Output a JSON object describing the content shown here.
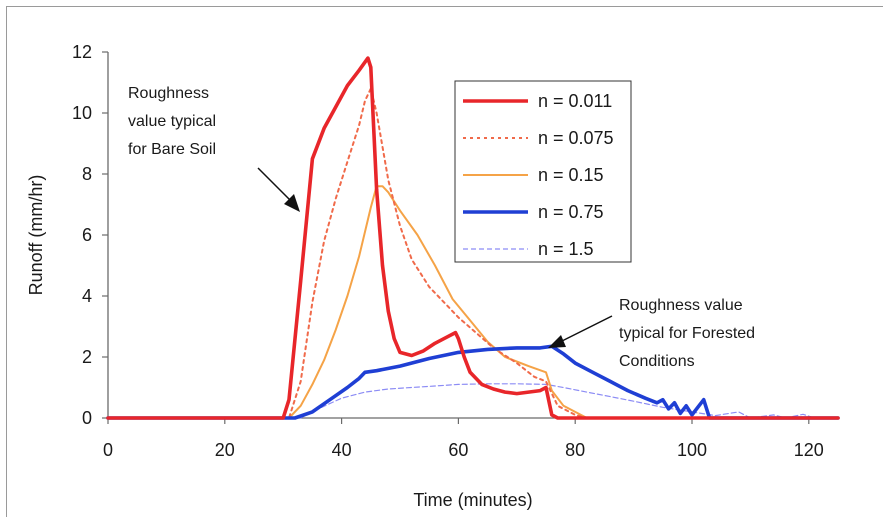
{
  "chart_data": {
    "type": "line",
    "title": "",
    "xlabel": "Time (minutes)",
    "ylabel": "Runoff (mm/hr)",
    "xlim": [
      0,
      125
    ],
    "ylim": [
      0,
      12
    ],
    "xticks": [
      0,
      20,
      40,
      60,
      80,
      100,
      120
    ],
    "yticks": [
      0,
      2,
      4,
      6,
      8,
      10,
      12
    ],
    "grid": false,
    "legend": "top-right",
    "series": [
      {
        "name": "n = 0.011",
        "color": "#e8262a",
        "style": "solid-thick",
        "points": [
          [
            0,
            0
          ],
          [
            30,
            0
          ],
          [
            31,
            0.6
          ],
          [
            33,
            4.5
          ],
          [
            35,
            8.5
          ],
          [
            37,
            9.5
          ],
          [
            39,
            10.2
          ],
          [
            41,
            10.9
          ],
          [
            43,
            11.4
          ],
          [
            44.5,
            11.8
          ],
          [
            45,
            11.5
          ],
          [
            46,
            7.5
          ],
          [
            47,
            5.0
          ],
          [
            48,
            3.5
          ],
          [
            49,
            2.6
          ],
          [
            50,
            2.15
          ],
          [
            52,
            2.05
          ],
          [
            54,
            2.2
          ],
          [
            56,
            2.45
          ],
          [
            58,
            2.65
          ],
          [
            59.5,
            2.8
          ],
          [
            60,
            2.6
          ],
          [
            61,
            2.0
          ],
          [
            62,
            1.5
          ],
          [
            64,
            1.1
          ],
          [
            66,
            0.95
          ],
          [
            68,
            0.85
          ],
          [
            70,
            0.8
          ],
          [
            72,
            0.85
          ],
          [
            74,
            0.9
          ],
          [
            75,
            1.0
          ],
          [
            76,
            0.1
          ],
          [
            77,
            0
          ],
          [
            125,
            0
          ]
        ]
      },
      {
        "name": "n = 0.075",
        "color": "#f06a4a",
        "style": "dotted",
        "points": [
          [
            0,
            0
          ],
          [
            31,
            0
          ],
          [
            33,
            1.2
          ],
          [
            35,
            3.8
          ],
          [
            37,
            5.8
          ],
          [
            39,
            7.2
          ],
          [
            41,
            8.4
          ],
          [
            43,
            9.6
          ],
          [
            44,
            10.4
          ],
          [
            45,
            10.8
          ],
          [
            46,
            10.0
          ],
          [
            48,
            7.8
          ],
          [
            50,
            6.3
          ],
          [
            52,
            5.2
          ],
          [
            55,
            4.3
          ],
          [
            58,
            3.7
          ],
          [
            60,
            3.3
          ],
          [
            63,
            2.8
          ],
          [
            66,
            2.3
          ],
          [
            70,
            1.8
          ],
          [
            73,
            1.35
          ],
          [
            75,
            1.2
          ],
          [
            77,
            0.4
          ],
          [
            80,
            0.1
          ],
          [
            82,
            0
          ],
          [
            125,
            0
          ]
        ]
      },
      {
        "name": "n = 0.15",
        "color": "#f5a347",
        "style": "solid",
        "points": [
          [
            0,
            0
          ],
          [
            31,
            0
          ],
          [
            33,
            0.4
          ],
          [
            35,
            1.1
          ],
          [
            37,
            1.9
          ],
          [
            39,
            2.9
          ],
          [
            41,
            4.0
          ],
          [
            43,
            5.3
          ],
          [
            45,
            6.9
          ],
          [
            46,
            7.6
          ],
          [
            47,
            7.6
          ],
          [
            48,
            7.4
          ],
          [
            50,
            6.8
          ],
          [
            53,
            6.0
          ],
          [
            56,
            5.0
          ],
          [
            59,
            3.9
          ],
          [
            62,
            3.2
          ],
          [
            65,
            2.5
          ],
          [
            68,
            2.0
          ],
          [
            72,
            1.7
          ],
          [
            75,
            1.5
          ],
          [
            76,
            0.9
          ],
          [
            78,
            0.4
          ],
          [
            80,
            0.2
          ],
          [
            82,
            0
          ],
          [
            125,
            0
          ]
        ]
      },
      {
        "name": "n = 0.75",
        "color": "#1f3fd4",
        "style": "solid-thick",
        "points": [
          [
            0,
            0
          ],
          [
            32,
            0
          ],
          [
            35,
            0.2
          ],
          [
            38,
            0.6
          ],
          [
            41,
            1.0
          ],
          [
            43,
            1.3
          ],
          [
            44,
            1.5
          ],
          [
            46,
            1.55
          ],
          [
            50,
            1.7
          ],
          [
            55,
            1.95
          ],
          [
            60,
            2.15
          ],
          [
            65,
            2.25
          ],
          [
            70,
            2.3
          ],
          [
            74,
            2.3
          ],
          [
            76,
            2.35
          ],
          [
            78,
            2.1
          ],
          [
            80,
            1.8
          ],
          [
            83,
            1.5
          ],
          [
            86,
            1.2
          ],
          [
            89,
            0.9
          ],
          [
            92,
            0.65
          ],
          [
            94,
            0.5
          ],
          [
            95,
            0.6
          ],
          [
            96,
            0.3
          ],
          [
            97,
            0.5
          ],
          [
            98,
            0.15
          ],
          [
            99,
            0.4
          ],
          [
            100,
            0.1
          ],
          [
            101,
            0.35
          ],
          [
            102,
            0.6
          ],
          [
            103,
            0
          ],
          [
            125,
            0
          ]
        ]
      },
      {
        "name": "n = 1.5",
        "color": "#8c8cf5",
        "style": "dashed-thin",
        "points": [
          [
            0,
            0
          ],
          [
            33,
            0
          ],
          [
            36,
            0.3
          ],
          [
            40,
            0.65
          ],
          [
            44,
            0.85
          ],
          [
            48,
            0.95
          ],
          [
            52,
            1.0
          ],
          [
            56,
            1.05
          ],
          [
            60,
            1.1
          ],
          [
            65,
            1.12
          ],
          [
            70,
            1.12
          ],
          [
            75,
            1.1
          ],
          [
            78,
            1.0
          ],
          [
            82,
            0.85
          ],
          [
            86,
            0.7
          ],
          [
            90,
            0.55
          ],
          [
            95,
            0.35
          ],
          [
            100,
            0.2
          ],
          [
            104,
            0.08
          ],
          [
            108,
            0.2
          ],
          [
            110,
            0
          ],
          [
            114,
            0.1
          ],
          [
            116,
            0
          ],
          [
            119,
            0.12
          ],
          [
            121,
            0
          ],
          [
            125,
            0
          ]
        ]
      }
    ],
    "annotations": [
      {
        "lines": [
          "Roughness",
          "value typical",
          "for Bare Soil"
        ]
      },
      {
        "lines": [
          "Roughness value",
          "typical for Forested",
          "Conditions"
        ]
      }
    ]
  }
}
